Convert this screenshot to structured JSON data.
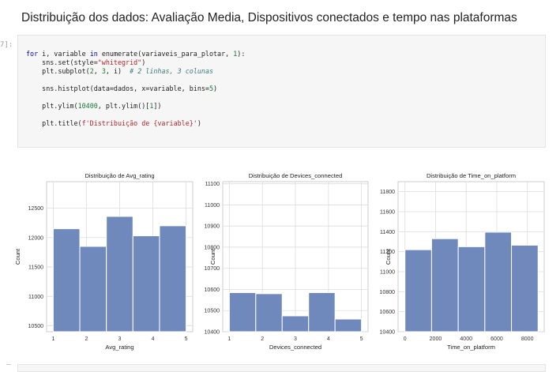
{
  "heading": "Distribuição dos dados: Avaliação Media, Dispositivos conectados e tempo nas plataformas",
  "prompt": "7]:",
  "code": {
    "line1_kw1": "for",
    "line1_mid": " i, variable ",
    "line1_kw2": "in",
    "line1_rest": " enumerate(variaveis_para_plotar, ",
    "line1_num": "1",
    "line1_end": "):",
    "line2_a": "    sns.set(style=",
    "line2_str": "\"whitegrid\"",
    "line2_b": ")",
    "line3_a": "    plt.subplot(",
    "line3_n1": "2",
    "line3_sep1": ", ",
    "line3_n2": "3",
    "line3_sep2": ", i)  ",
    "line3_com": "# 2 linhas, 3 colunas",
    "line4_a": "    sns.histplot(data=dados, x=variable, bins=",
    "line4_num": "5",
    "line4_b": ")",
    "line5_a": "    plt.ylim(",
    "line5_num": "10400",
    "line5_b": ", plt.ylim()[",
    "line5_n2": "1",
    "line5_c": "])",
    "line6_a": "    plt.title(",
    "line6_str": "f'Distribuição de {variable}'",
    "line6_b": ")"
  },
  "colors": {
    "bar": "#7089bd",
    "bar_edge": "#ffffff",
    "grid": "#dddddd",
    "frame": "#cccccc"
  },
  "chart_data": [
    {
      "type": "bar",
      "title": "Distribuição de Avg_rating",
      "xlabel": "Avg_rating",
      "ylabel": "Count",
      "xlim": [
        0.8,
        5.2
      ],
      "ylim": [
        10400,
        12950
      ],
      "xticks": [
        1,
        2,
        3,
        4,
        5
      ],
      "yticks": [
        10500,
        11000,
        11500,
        12000,
        12500
      ],
      "bin_edges": [
        1.0,
        1.8,
        2.6,
        3.4,
        4.2,
        5.0
      ],
      "values": [
        12150,
        11850,
        12360,
        12030,
        12200
      ]
    },
    {
      "type": "bar",
      "title": "Distribuição de Devices_connected",
      "xlabel": "Devices_connected",
      "ylabel": "Count",
      "xlim": [
        0.8,
        5.2
      ],
      "ylim": [
        10400,
        11110
      ],
      "xticks": [
        1,
        2,
        3,
        4,
        5
      ],
      "yticks": [
        10400,
        10500,
        10600,
        10700,
        10800,
        10900,
        11000,
        11100
      ],
      "bin_edges": [
        1.0,
        1.8,
        2.6,
        3.4,
        4.2,
        5.0
      ],
      "values": [
        10585,
        10580,
        10475,
        10585,
        10460
      ]
    },
    {
      "type": "bar",
      "title": "Distribuição de Time_on_platform",
      "xlabel": "Time_on_platform",
      "ylabel": "Count",
      "xlim": [
        -450,
        9100
      ],
      "ylim": [
        10400,
        11900
      ],
      "xticks": [
        0,
        2000,
        4000,
        6000,
        8000
      ],
      "yticks": [
        10400,
        10600,
        10800,
        11000,
        11200,
        11400,
        11600,
        11800
      ],
      "bin_edges": [
        0,
        1740,
        3480,
        5220,
        6960,
        8700
      ],
      "values": [
        11220,
        11330,
        11250,
        11395,
        11265
      ]
    }
  ]
}
